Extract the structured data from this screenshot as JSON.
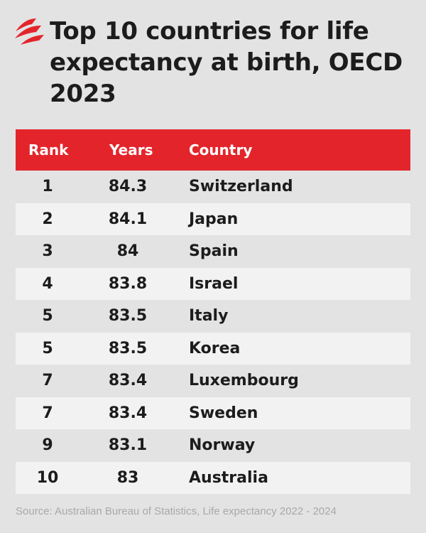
{
  "brand": {
    "logo_icon": "sbs-logo-icon",
    "accent_color": "#e3252b"
  },
  "title": "Top 10 countries for life expectancy at birth, OECD 2023",
  "chart_data": {
    "type": "table",
    "columns": [
      "Rank",
      "Years",
      "Country"
    ],
    "rows": [
      {
        "rank": "1",
        "years": "84.3",
        "country": "Switzerland"
      },
      {
        "rank": "2",
        "years": "84.1",
        "country": "Japan"
      },
      {
        "rank": "3",
        "years": "84",
        "country": "Spain"
      },
      {
        "rank": "4",
        "years": "83.8",
        "country": "Israel"
      },
      {
        "rank": "5",
        "years": "83.5",
        "country": "Italy"
      },
      {
        "rank": "5",
        "years": "83.5",
        "country": "Korea"
      },
      {
        "rank": "7",
        "years": "83.4",
        "country": "Luxembourg"
      },
      {
        "rank": "7",
        "years": "83.4",
        "country": "Sweden"
      },
      {
        "rank": "9",
        "years": "83.1",
        "country": "Norway"
      },
      {
        "rank": "10",
        "years": "83",
        "country": "Australia"
      }
    ]
  },
  "source": "Source: Australian Bureau of Statistics, Life expectancy 2022 - 2024"
}
